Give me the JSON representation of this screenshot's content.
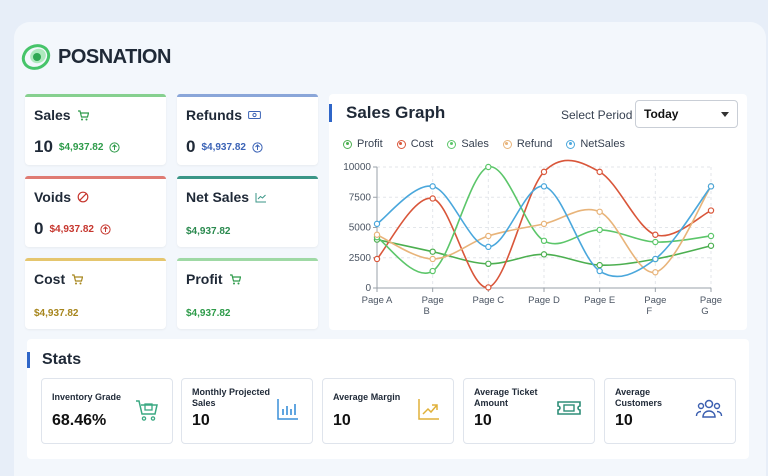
{
  "brand": {
    "name": "POSNATION"
  },
  "cards": {
    "sales": {
      "title": "Sales",
      "count": "10",
      "amount": "$4,937.82",
      "bar_color": "#86d08f",
      "amount_color": "#2e9b4a",
      "icon": "cart-icon"
    },
    "refunds": {
      "title": "Refunds",
      "count": "0",
      "amount": "$4,937.82",
      "bar_color": "#8aa6d9",
      "amount_color": "#3b63b6",
      "icon": "cash-icon"
    },
    "voids": {
      "title": "Voids",
      "count": "0",
      "amount": "$4,937.82",
      "bar_color": "#df7b73",
      "amount_color": "#c6362e",
      "icon": "ban-icon"
    },
    "netsales": {
      "title": "Net Sales",
      "amount": "$4,937.82",
      "bar_color": "#3a9687",
      "amount_color": "#2b8a4f",
      "icon": "trend-icon"
    },
    "cost": {
      "title": "Cost",
      "amount": "$4,937.82",
      "bar_color": "#e5c66e",
      "amount_color": "#a7861d",
      "icon": "cart-icon"
    },
    "profit": {
      "title": "Profit",
      "amount": "$4,937.82",
      "bar_color": "#9fd9a5",
      "amount_color": "#2e9b4a",
      "icon": "cart-icon"
    }
  },
  "graph": {
    "title": "Sales Graph",
    "period_label": "Select Period",
    "period_value": "Today"
  },
  "chart_data": {
    "type": "line",
    "categories": [
      "Page A",
      "Page B",
      "Page C",
      "Page D",
      "Page E",
      "Page F",
      "Page G"
    ],
    "tick_labels": [
      [
        "Page A"
      ],
      [
        "Page",
        "B"
      ],
      [
        "Page C"
      ],
      [
        "Page D"
      ],
      [
        "Page E"
      ],
      [
        "Page",
        "F"
      ],
      [
        "Page",
        "G"
      ]
    ],
    "ylim": [
      0,
      10000
    ],
    "yticks": [
      "0",
      "2500",
      "5000",
      "7500",
      "10000"
    ],
    "ytick_values": [
      0,
      2500,
      5000,
      7500,
      10000
    ],
    "grid": true,
    "legend_position": "top",
    "series": [
      {
        "name": "Profit",
        "color": "#4caf50",
        "values": [
          4000,
          3000,
          2000,
          2780,
          1890,
          2390,
          3490
        ]
      },
      {
        "name": "Cost",
        "color": "#d9563a",
        "values": [
          2400,
          7400,
          50,
          9600,
          9600,
          4400,
          6400
        ]
      },
      {
        "name": "Sales",
        "color": "#5cc66a",
        "values": [
          4200,
          1400,
          10000,
          3900,
          4800,
          3800,
          4300
        ]
      },
      {
        "name": "Refund",
        "color": "#e8b47a",
        "values": [
          4400,
          2400,
          4300,
          5300,
          6300,
          1300,
          8400
        ]
      },
      {
        "name": "NetSales",
        "color": "#4aa7dc",
        "values": [
          5300,
          8400,
          3400,
          8400,
          1400,
          2400,
          8400
        ]
      }
    ]
  },
  "stats": {
    "title": "Stats",
    "items": [
      {
        "label": "Inventory Grade",
        "value": "68.46%",
        "icon": "inventory-cart-icon",
        "color": "#3aa882"
      },
      {
        "label": "Monthly Projected Sales",
        "value": "10",
        "icon": "bar-chart-icon",
        "color": "#3a8fd9"
      },
      {
        "label": "Average Margin",
        "value": "10",
        "icon": "trend-up-icon",
        "color": "#e0b13a"
      },
      {
        "label": "Average Ticket Amount",
        "value": "10",
        "icon": "ticket-icon",
        "color": "#2e8e78"
      },
      {
        "label": "Average Customers",
        "value": "10",
        "icon": "users-icon",
        "color": "#3b5fb0"
      }
    ]
  }
}
